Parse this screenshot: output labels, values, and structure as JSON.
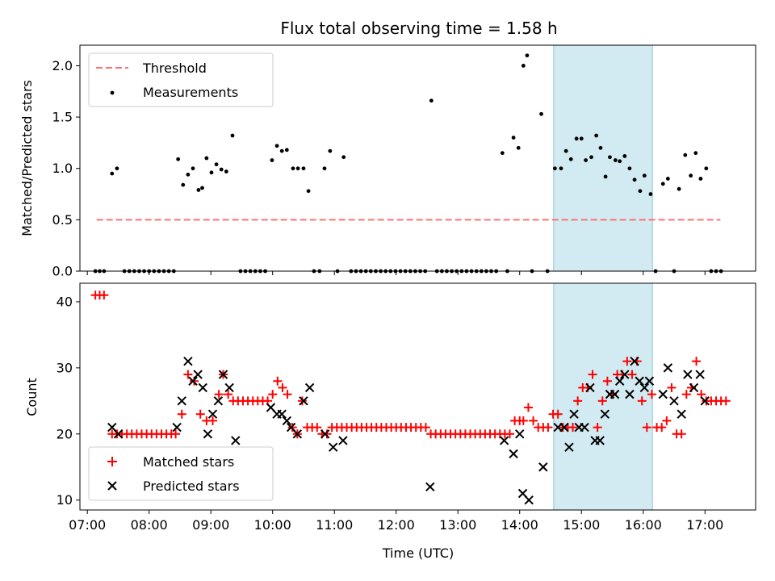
{
  "chart_data": [
    {
      "type": "scatter",
      "title": "Flux total observing time = 1.58 h",
      "xlabel": "",
      "ylabel": "Matched/Predicted stars",
      "xlim": [
        6.88,
        17.82
      ],
      "ylim": [
        0.0,
        2.2
      ],
      "yticks": [
        "0.0",
        "0.5",
        "1.0",
        "1.5",
        "2.0"
      ],
      "ytick_values": [
        0.0,
        0.5,
        1.0,
        1.5,
        2.0
      ],
      "highlight_span": [
        14.55,
        16.15
      ],
      "highlight_color": "#add8e6",
      "legend": {
        "placement": "top-left",
        "entries": [
          "Threshold",
          "Measurements"
        ]
      },
      "series": [
        {
          "name": "Threshold",
          "style": "dashed-line",
          "color": "#ff7070",
          "x": [
            7.15,
            17.25
          ],
          "values": [
            0.5,
            0.5
          ]
        },
        {
          "name": "Measurements",
          "style": "dot",
          "color": "#000000",
          "x": [
            7.13,
            7.2,
            7.27,
            7.4,
            7.48,
            7.6,
            7.68,
            7.76,
            7.84,
            7.92,
            8.0,
            8.08,
            8.16,
            8.24,
            8.32,
            8.4,
            8.47,
            8.55,
            8.63,
            8.71,
            8.8,
            8.86,
            8.93,
            9.01,
            9.09,
            9.17,
            9.25,
            9.35,
            9.48,
            9.56,
            9.64,
            9.72,
            9.8,
            9.88,
            9.99,
            10.07,
            10.15,
            10.23,
            10.33,
            10.41,
            10.5,
            10.58,
            10.67,
            10.76,
            10.84,
            10.93,
            11.05,
            11.15,
            11.27,
            11.35,
            11.43,
            11.51,
            11.59,
            11.67,
            11.75,
            11.83,
            11.91,
            11.99,
            12.07,
            12.15,
            12.23,
            12.31,
            12.39,
            12.47,
            12.57,
            12.66,
            12.74,
            12.82,
            12.9,
            12.98,
            13.06,
            13.14,
            13.22,
            13.3,
            13.38,
            13.46,
            13.54,
            13.62,
            13.72,
            13.8,
            13.9,
            13.98,
            14.06,
            14.12,
            14.2,
            14.35,
            14.45,
            14.57,
            14.67,
            14.75,
            14.83,
            14.92,
            15.0,
            15.07,
            15.16,
            15.24,
            15.31,
            15.39,
            15.46,
            15.55,
            15.62,
            15.7,
            15.78,
            15.86,
            15.95,
            16.02,
            16.12,
            16.2,
            16.32,
            16.4,
            16.5,
            16.58,
            16.68,
            16.77,
            16.85,
            16.93,
            17.02,
            17.1,
            17.18,
            17.26
          ],
          "values": [
            0.0,
            0.0,
            0.0,
            0.95,
            1.0,
            0.0,
            0.0,
            0.0,
            0.0,
            0.0,
            0.0,
            0.0,
            0.0,
            0.0,
            0.0,
            0.0,
            1.09,
            0.84,
            0.94,
            1.0,
            0.79,
            0.81,
            1.1,
            0.96,
            1.04,
            0.99,
            0.97,
            1.32,
            0.0,
            0.0,
            0.0,
            0.0,
            0.0,
            0.0,
            1.08,
            1.22,
            1.17,
            1.18,
            1.0,
            1.0,
            1.0,
            0.78,
            0.0,
            0.0,
            1.0,
            1.17,
            0.0,
            1.11,
            0.0,
            0.0,
            0.0,
            0.0,
            0.0,
            0.0,
            0.0,
            0.0,
            0.0,
            0.0,
            0.0,
            0.0,
            0.0,
            0.0,
            0.0,
            0.0,
            1.66,
            0.0,
            0.0,
            0.0,
            0.0,
            0.0,
            0.0,
            0.0,
            0.0,
            0.0,
            0.0,
            0.0,
            0.0,
            0.0,
            1.15,
            0.0,
            1.3,
            1.2,
            2.0,
            2.1,
            0.0,
            1.53,
            0.0,
            1.0,
            1.0,
            1.17,
            1.09,
            1.29,
            1.29,
            1.08,
            1.11,
            1.32,
            1.2,
            0.92,
            1.11,
            1.08,
            1.07,
            1.12,
            1.0,
            0.89,
            0.78,
            0.93,
            0.75,
            0.0,
            0.85,
            0.9,
            0.0,
            0.8,
            1.13,
            0.93,
            1.15,
            0.9,
            1.0,
            0.0,
            0.0,
            0.0
          ]
        }
      ]
    },
    {
      "type": "scatter",
      "title": "",
      "xlabel": "Time (UTC)",
      "ylabel": "Count",
      "xlim": [
        6.88,
        17.82
      ],
      "ylim": [
        8.5,
        42.8
      ],
      "yticks": [
        "10",
        "20",
        "30",
        "40"
      ],
      "ytick_values": [
        10,
        20,
        30,
        40
      ],
      "xticks": [
        "07:00",
        "08:00",
        "09:00",
        "10:00",
        "11:00",
        "12:00",
        "13:00",
        "14:00",
        "15:00",
        "16:00",
        "17:00"
      ],
      "xtick_values": [
        7,
        8,
        9,
        10,
        11,
        12,
        13,
        14,
        15,
        16,
        17
      ],
      "highlight_span": [
        14.55,
        16.15
      ],
      "highlight_color": "#add8e6",
      "legend": {
        "placement": "bottom-left",
        "entries": [
          "Matched stars",
          "Predicted stars"
        ]
      },
      "series": [
        {
          "name": "Matched stars",
          "style": "plus",
          "color": "#ff0000",
          "x": [
            7.13,
            7.2,
            7.27,
            7.4,
            7.48,
            7.56,
            7.64,
            7.72,
            7.8,
            7.88,
            7.96,
            8.04,
            8.12,
            8.2,
            8.28,
            8.36,
            8.43,
            8.53,
            8.63,
            8.73,
            8.83,
            8.93,
            9.03,
            9.13,
            9.2,
            9.28,
            9.36,
            9.44,
            9.52,
            9.6,
            9.68,
            9.76,
            9.84,
            9.92,
            10.0,
            10.08,
            10.16,
            10.24,
            10.32,
            10.4,
            10.48,
            10.56,
            10.64,
            10.72,
            10.8,
            10.88,
            10.96,
            11.04,
            11.12,
            11.2,
            11.28,
            11.36,
            11.44,
            11.52,
            11.6,
            11.68,
            11.76,
            11.84,
            11.92,
            12.0,
            12.08,
            12.16,
            12.24,
            12.32,
            12.4,
            12.48,
            12.56,
            12.64,
            12.72,
            12.8,
            12.88,
            12.96,
            13.04,
            13.12,
            13.2,
            13.28,
            13.36,
            13.44,
            13.52,
            13.6,
            13.68,
            13.76,
            13.84,
            13.92,
            14.0,
            14.06,
            14.14,
            14.22,
            14.3,
            14.38,
            14.46,
            14.54,
            14.62,
            14.7,
            14.78,
            14.86,
            14.94,
            15.02,
            15.1,
            15.18,
            15.26,
            15.34,
            15.42,
            15.5,
            15.58,
            15.66,
            15.74,
            15.82,
            15.9,
            15.98,
            16.06,
            16.14,
            16.22,
            16.3,
            16.38,
            16.46,
            16.54,
            16.62,
            16.7,
            16.78,
            16.86,
            16.94,
            17.02,
            17.1,
            17.18,
            17.26,
            17.34
          ],
          "values": [
            41,
            41,
            41,
            20,
            20,
            20,
            20,
            20,
            20,
            20,
            20,
            20,
            20,
            20,
            20,
            20,
            20,
            23,
            29,
            28,
            23,
            22,
            22,
            26,
            29,
            26,
            25,
            25,
            25,
            25,
            25,
            25,
            25,
            25,
            26,
            28,
            27,
            26,
            21,
            20,
            25,
            21,
            21,
            21,
            20,
            20,
            21,
            21,
            21,
            21,
            21,
            21,
            21,
            21,
            21,
            21,
            21,
            21,
            21,
            21,
            21,
            21,
            21,
            21,
            21,
            21,
            20,
            20,
            20,
            20,
            20,
            20,
            20,
            20,
            20,
            20,
            20,
            20,
            20,
            20,
            20,
            20,
            20,
            22,
            22,
            22,
            24,
            22,
            21,
            21,
            21,
            23,
            23,
            21,
            21,
            21,
            25,
            27,
            27,
            29,
            21,
            25,
            28,
            26,
            29,
            29,
            31,
            29,
            31,
            25,
            21,
            26,
            21,
            21,
            22,
            27,
            20,
            20,
            26,
            27,
            31,
            26,
            25,
            25,
            25,
            25,
            25
          ]
        },
        {
          "name": "Predicted stars",
          "style": "x",
          "color": "#000000",
          "x": [
            7.4,
            7.5,
            8.45,
            8.53,
            8.63,
            8.71,
            8.79,
            8.87,
            8.95,
            9.03,
            9.12,
            9.2,
            9.3,
            9.4,
            9.97,
            10.07,
            10.15,
            10.23,
            10.3,
            10.4,
            10.5,
            10.6,
            10.85,
            10.98,
            11.14,
            12.55,
            13.75,
            13.9,
            14.0,
            14.05,
            14.15,
            14.38,
            14.62,
            14.72,
            14.8,
            14.88,
            14.96,
            15.05,
            15.14,
            15.22,
            15.3,
            15.38,
            15.46,
            15.54,
            15.62,
            15.7,
            15.78,
            15.86,
            15.94,
            16.02,
            16.1,
            16.32,
            16.4,
            16.5,
            16.62,
            16.72,
            16.82,
            16.92,
            17.0
          ],
          "values": [
            21,
            20,
            21,
            25,
            31,
            28,
            29,
            27,
            20,
            23,
            25,
            29,
            27,
            19,
            24,
            23,
            23,
            22,
            21,
            20,
            25,
            27,
            20,
            18,
            19,
            12,
            19,
            17,
            20,
            11,
            10,
            15,
            21,
            21,
            18,
            23,
            21,
            21,
            27,
            19,
            19,
            23,
            26,
            26,
            28,
            29,
            26,
            31,
            28,
            27,
            28,
            26,
            30,
            25,
            23,
            29,
            27,
            29,
            25
          ]
        }
      ]
    }
  ]
}
